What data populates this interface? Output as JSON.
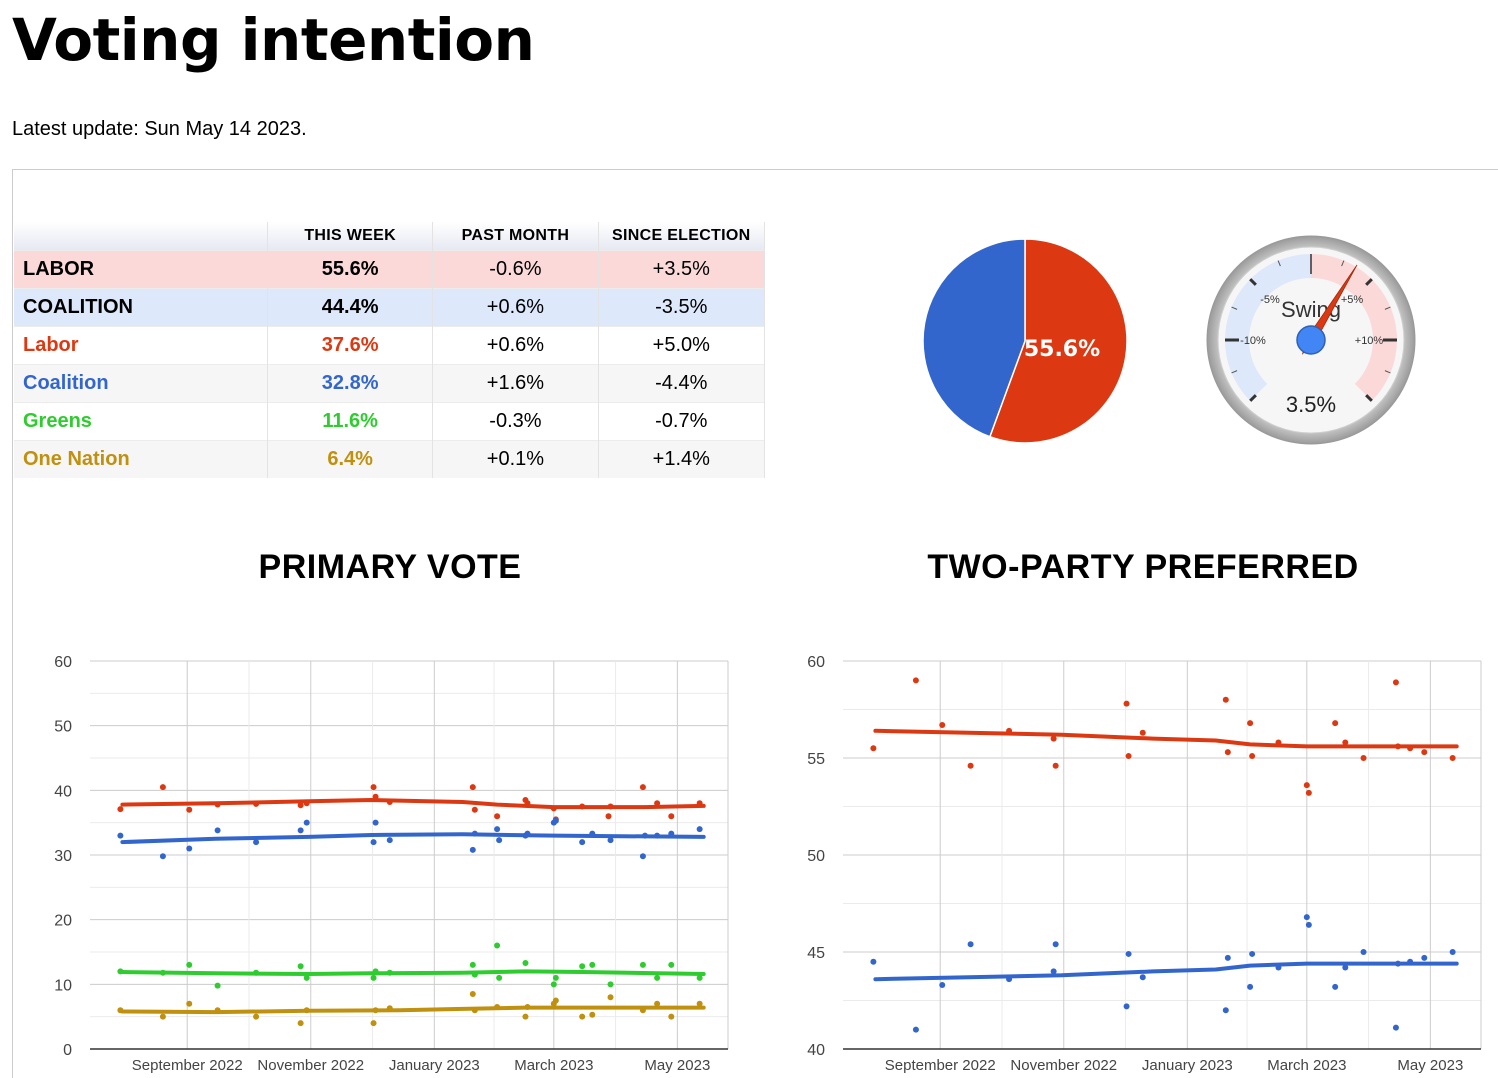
{
  "page": {
    "title": "Voting intention",
    "update": "Latest update: Sun May 14 2023."
  },
  "summary_table": {
    "headers": [
      "",
      "THIS WEEK",
      "PAST MONTH",
      "SINCE ELECTION"
    ],
    "rows": [
      {
        "name": "LABOR",
        "this_week": "55.6%",
        "past_month": "-0.6%",
        "since_election": "+3.5%",
        "color": "#000000",
        "bg": "#fcd9d9"
      },
      {
        "name": "COALITION",
        "this_week": "44.4%",
        "past_month": "+0.6%",
        "since_election": "-3.5%",
        "color": "#000000",
        "bg": "#dde8fb"
      },
      {
        "name": "Labor",
        "this_week": "37.6%",
        "past_month": "+0.6%",
        "since_election": "+5.0%",
        "color": "#dc3912",
        "bg": "#ffffff"
      },
      {
        "name": "Coalition",
        "this_week": "32.8%",
        "past_month": "+1.6%",
        "since_election": "-4.4%",
        "color": "#3366cc",
        "bg": "#f6f6f6"
      },
      {
        "name": "Greens",
        "this_week": "11.6%",
        "past_month": "-0.3%",
        "since_election": "-0.7%",
        "color": "#2ecc2e",
        "bg": "#ffffff"
      },
      {
        "name": "One Nation",
        "this_week": "6.4%",
        "past_month": "+0.1%",
        "since_election": "+1.4%",
        "color": "#c0900f",
        "bg": "#f6f6f6"
      }
    ]
  },
  "pie": {
    "label": "55.6%",
    "slices": [
      {
        "party": "LABOR",
        "value": 55.6,
        "color": "#dc3912"
      },
      {
        "party": "COALITION",
        "value": 44.4,
        "color": "#3366cc"
      }
    ]
  },
  "gauge": {
    "title": "Swing",
    "value": 3.5,
    "value_label": "3.5%",
    "min": -15,
    "max": 15,
    "tick_labels": [
      {
        "value": -10,
        "label": "-10%"
      },
      {
        "value": -5,
        "label": "-5%"
      },
      {
        "value": 5,
        "label": "+5%"
      },
      {
        "value": 10,
        "label": "+10%"
      }
    ],
    "negative_band_color": "#dde8fb",
    "positive_band_color": "#fcd9d9",
    "needle_color": "#dc3912",
    "hub_color": "#4285f4"
  },
  "chart_data": [
    {
      "type": "line",
      "title": "PRIMARY VOTE",
      "xlabel": "",
      "ylabel": "",
      "ylim": [
        0,
        60
      ],
      "y_ticks": [
        0,
        10,
        20,
        30,
        40,
        50,
        60
      ],
      "x_range": [
        "2022-07-15",
        "2023-05-26"
      ],
      "x_ticks": [
        {
          "date": "2022-09-01",
          "label": "September 2022"
        },
        {
          "date": "2022-11-01",
          "label": "November 2022"
        },
        {
          "date": "2023-01-01",
          "label": "January 2023"
        },
        {
          "date": "2023-03-01",
          "label": "March 2023"
        },
        {
          "date": "2023-05-01",
          "label": "May 2023"
        }
      ],
      "grid": true,
      "series": [
        {
          "color": "#dc3912",
          "trend": [
            [
              "2022-07-31",
              37.8
            ],
            [
              "2022-09-15",
              38.0
            ],
            [
              "2022-10-31",
              38.3
            ],
            [
              "2022-12-01",
              38.5
            ],
            [
              "2023-01-15",
              38.2
            ],
            [
              "2023-02-01",
              37.8
            ],
            [
              "2023-03-01",
              37.4
            ],
            [
              "2023-04-15",
              37.4
            ],
            [
              "2023-05-14",
              37.6
            ]
          ],
          "points": [
            [
              "2022-07-30",
              37.1
            ],
            [
              "2022-08-20",
              40.5
            ],
            [
              "2022-09-02",
              37.0
            ],
            [
              "2022-09-16",
              37.8
            ],
            [
              "2022-10-05",
              37.9
            ],
            [
              "2022-10-27",
              37.7
            ],
            [
              "2022-10-30",
              38.0
            ],
            [
              "2022-12-02",
              40.5
            ],
            [
              "2022-12-03",
              39.0
            ],
            [
              "2022-12-10",
              38.2
            ],
            [
              "2023-01-20",
              40.5
            ],
            [
              "2023-01-21",
              37.0
            ],
            [
              "2023-02-01",
              36.0
            ],
            [
              "2023-02-15",
              38.5
            ],
            [
              "2023-02-16",
              38.0
            ],
            [
              "2023-03-01",
              37.2
            ],
            [
              "2023-03-02",
              35.5
            ],
            [
              "2023-03-15",
              37.5
            ],
            [
              "2023-03-28",
              36.0
            ],
            [
              "2023-03-29",
              37.5
            ],
            [
              "2023-04-14",
              40.5
            ],
            [
              "2023-04-21",
              38.0
            ],
            [
              "2023-04-28",
              36.0
            ],
            [
              "2023-05-12",
              38.0
            ]
          ]
        },
        {
          "color": "#3366cc",
          "trend": [
            [
              "2022-07-31",
              32.0
            ],
            [
              "2022-09-15",
              32.5
            ],
            [
              "2022-10-31",
              32.8
            ],
            [
              "2022-12-01",
              33.1
            ],
            [
              "2023-01-15",
              33.2
            ],
            [
              "2023-03-01",
              33.0
            ],
            [
              "2023-05-14",
              32.8
            ]
          ],
          "points": [
            [
              "2022-07-30",
              33.0
            ],
            [
              "2022-08-20",
              29.8
            ],
            [
              "2022-09-02",
              31.0
            ],
            [
              "2022-09-16",
              33.8
            ],
            [
              "2022-10-05",
              32.0
            ],
            [
              "2022-10-27",
              33.8
            ],
            [
              "2022-10-30",
              35.0
            ],
            [
              "2022-12-02",
              32.0
            ],
            [
              "2022-12-03",
              35.0
            ],
            [
              "2022-12-10",
              32.3
            ],
            [
              "2023-01-20",
              30.8
            ],
            [
              "2023-01-21",
              33.3
            ],
            [
              "2023-02-01",
              34.0
            ],
            [
              "2023-02-02",
              32.3
            ],
            [
              "2023-02-15",
              33.0
            ],
            [
              "2023-02-16",
              33.3
            ],
            [
              "2023-03-01",
              35.0
            ],
            [
              "2023-03-02",
              35.3
            ],
            [
              "2023-03-15",
              32.0
            ],
            [
              "2023-03-20",
              33.3
            ],
            [
              "2023-03-29",
              32.3
            ],
            [
              "2023-04-14",
              29.8
            ],
            [
              "2023-04-15",
              33.0
            ],
            [
              "2023-04-21",
              33.0
            ],
            [
              "2023-04-28",
              33.3
            ],
            [
              "2023-05-12",
              34.0
            ]
          ]
        },
        {
          "color": "#2ecc2e",
          "trend": [
            [
              "2022-07-31",
              11.9
            ],
            [
              "2022-09-15",
              11.7
            ],
            [
              "2022-10-31",
              11.6
            ],
            [
              "2022-12-01",
              11.7
            ],
            [
              "2023-01-15",
              11.8
            ],
            [
              "2023-02-15",
              12.0
            ],
            [
              "2023-03-15",
              11.9
            ],
            [
              "2023-05-14",
              11.6
            ]
          ],
          "points": [
            [
              "2022-07-30",
              12.0
            ],
            [
              "2022-08-20",
              11.8
            ],
            [
              "2022-09-02",
              13.0
            ],
            [
              "2022-09-16",
              9.8
            ],
            [
              "2022-10-05",
              11.8
            ],
            [
              "2022-10-27",
              12.8
            ],
            [
              "2022-10-30",
              11.0
            ],
            [
              "2022-12-02",
              11.0
            ],
            [
              "2022-12-03",
              12.0
            ],
            [
              "2022-12-10",
              11.8
            ],
            [
              "2023-01-20",
              13.0
            ],
            [
              "2023-01-21",
              11.5
            ],
            [
              "2023-02-01",
              16.0
            ],
            [
              "2023-02-02",
              11.0
            ],
            [
              "2023-02-15",
              13.3
            ],
            [
              "2023-03-01",
              10.0
            ],
            [
              "2023-03-02",
              11.0
            ],
            [
              "2023-03-15",
              12.8
            ],
            [
              "2023-03-20",
              13.0
            ],
            [
              "2023-03-29",
              10.0
            ],
            [
              "2023-04-14",
              13.0
            ],
            [
              "2023-04-21",
              11.0
            ],
            [
              "2023-04-28",
              13.0
            ],
            [
              "2023-05-12",
              11.0
            ]
          ]
        },
        {
          "color": "#c0900f",
          "trend": [
            [
              "2022-07-31",
              5.8
            ],
            [
              "2022-09-15",
              5.7
            ],
            [
              "2022-10-31",
              5.9
            ],
            [
              "2022-12-15",
              6.0
            ],
            [
              "2023-01-15",
              6.2
            ],
            [
              "2023-02-15",
              6.4
            ],
            [
              "2023-04-15",
              6.4
            ],
            [
              "2023-05-14",
              6.4
            ]
          ],
          "points": [
            [
              "2022-07-30",
              6.0
            ],
            [
              "2022-08-20",
              5.0
            ],
            [
              "2022-09-02",
              7.0
            ],
            [
              "2022-09-16",
              6.0
            ],
            [
              "2022-10-05",
              5.0
            ],
            [
              "2022-10-27",
              4.0
            ],
            [
              "2022-10-30",
              6.0
            ],
            [
              "2022-12-02",
              4.0
            ],
            [
              "2022-12-03",
              6.0
            ],
            [
              "2022-12-10",
              6.3
            ],
            [
              "2023-01-20",
              8.5
            ],
            [
              "2023-01-21",
              6.0
            ],
            [
              "2023-02-01",
              6.5
            ],
            [
              "2023-02-15",
              5.0
            ],
            [
              "2023-02-16",
              6.5
            ],
            [
              "2023-03-01",
              7.0
            ],
            [
              "2023-03-02",
              7.5
            ],
            [
              "2023-03-15",
              5.0
            ],
            [
              "2023-03-20",
              5.3
            ],
            [
              "2023-03-29",
              8.0
            ],
            [
              "2023-04-14",
              6.0
            ],
            [
              "2023-04-21",
              7.0
            ],
            [
              "2023-04-28",
              5.0
            ],
            [
              "2023-05-12",
              7.0
            ]
          ]
        }
      ]
    },
    {
      "type": "line",
      "title": "TWO-PARTY PREFERRED",
      "xlabel": "",
      "ylabel": "",
      "ylim": [
        40,
        60
      ],
      "y_ticks": [
        40,
        45,
        50,
        55,
        60
      ],
      "x_range": [
        "2022-07-15",
        "2023-05-26"
      ],
      "x_ticks": [
        {
          "date": "2022-09-01",
          "label": "September 2022"
        },
        {
          "date": "2022-11-01",
          "label": "November 2022"
        },
        {
          "date": "2023-01-01",
          "label": "January 2023"
        },
        {
          "date": "2023-03-01",
          "label": "March 2023"
        },
        {
          "date": "2023-05-01",
          "label": "May 2023"
        }
      ],
      "grid": true,
      "series": [
        {
          "color": "#dc3912",
          "trend": [
            [
              "2022-07-31",
              56.4
            ],
            [
              "2022-09-15",
              56.3
            ],
            [
              "2022-10-31",
              56.2
            ],
            [
              "2022-12-15",
              56.0
            ],
            [
              "2023-01-15",
              55.9
            ],
            [
              "2023-02-01",
              55.7
            ],
            [
              "2023-03-01",
              55.6
            ],
            [
              "2023-05-14",
              55.6
            ]
          ],
          "points": [
            [
              "2022-07-30",
              55.5
            ],
            [
              "2022-08-20",
              59.0
            ],
            [
              "2022-09-02",
              56.7
            ],
            [
              "2022-09-16",
              54.6
            ],
            [
              "2022-10-05",
              56.4
            ],
            [
              "2022-10-27",
              56.0
            ],
            [
              "2022-10-28",
              54.6
            ],
            [
              "2022-12-02",
              57.8
            ],
            [
              "2022-12-03",
              55.1
            ],
            [
              "2022-12-10",
              56.3
            ],
            [
              "2023-01-20",
              58.0
            ],
            [
              "2023-01-21",
              55.3
            ],
            [
              "2023-02-01",
              56.8
            ],
            [
              "2023-02-02",
              55.1
            ],
            [
              "2023-02-15",
              55.8
            ],
            [
              "2023-03-01",
              53.6
            ],
            [
              "2023-03-02",
              53.2
            ],
            [
              "2023-03-15",
              56.8
            ],
            [
              "2023-03-20",
              55.8
            ],
            [
              "2023-03-29",
              55.0
            ],
            [
              "2023-04-14",
              58.9
            ],
            [
              "2023-04-15",
              55.6
            ],
            [
              "2023-04-21",
              55.5
            ],
            [
              "2023-04-28",
              55.3
            ],
            [
              "2023-05-12",
              55.0
            ]
          ]
        },
        {
          "color": "#3366cc",
          "trend": [
            [
              "2022-07-31",
              43.6
            ],
            [
              "2022-09-15",
              43.7
            ],
            [
              "2022-10-31",
              43.8
            ],
            [
              "2022-12-15",
              44.0
            ],
            [
              "2023-01-15",
              44.1
            ],
            [
              "2023-02-01",
              44.3
            ],
            [
              "2023-03-01",
              44.4
            ],
            [
              "2023-05-14",
              44.4
            ]
          ],
          "points": [
            [
              "2022-07-30",
              44.5
            ],
            [
              "2022-08-20",
              41.0
            ],
            [
              "2022-09-02",
              43.3
            ],
            [
              "2022-09-16",
              45.4
            ],
            [
              "2022-10-05",
              43.6
            ],
            [
              "2022-10-27",
              44.0
            ],
            [
              "2022-10-28",
              45.4
            ],
            [
              "2022-12-02",
              42.2
            ],
            [
              "2022-12-03",
              44.9
            ],
            [
              "2022-12-10",
              43.7
            ],
            [
              "2023-01-20",
              42.0
            ],
            [
              "2023-01-21",
              44.7
            ],
            [
              "2023-02-01",
              43.2
            ],
            [
              "2023-02-02",
              44.9
            ],
            [
              "2023-02-15",
              44.2
            ],
            [
              "2023-03-01",
              46.8
            ],
            [
              "2023-03-02",
              46.4
            ],
            [
              "2023-03-15",
              43.2
            ],
            [
              "2023-03-20",
              44.2
            ],
            [
              "2023-03-29",
              45.0
            ],
            [
              "2023-04-14",
              41.1
            ],
            [
              "2023-04-15",
              44.4
            ],
            [
              "2023-04-21",
              44.5
            ],
            [
              "2023-04-28",
              44.7
            ],
            [
              "2023-05-12",
              45.0
            ]
          ]
        }
      ]
    }
  ]
}
